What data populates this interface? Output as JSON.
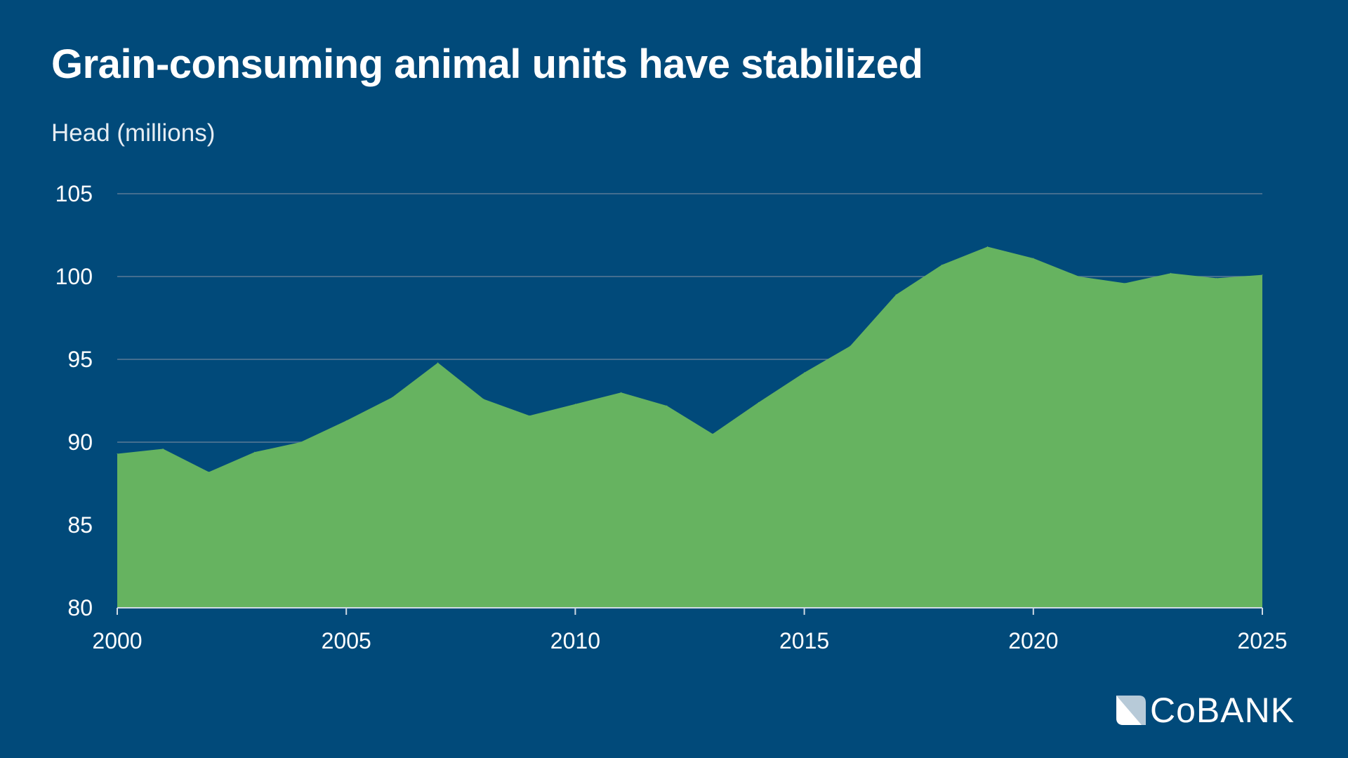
{
  "header": {
    "title": "Grain-consuming animal units have stabilized",
    "subtitle": "Head (millions)"
  },
  "logo": {
    "text": "CoBANK",
    "icon": "cobank-logo-icon"
  },
  "colors": {
    "background": "#014a7a",
    "area": "#66b360",
    "grid": "#5a7a96"
  },
  "chart_data": {
    "type": "area",
    "title": "Grain-consuming animal units have stabilized",
    "ylabel": "Head (millions)",
    "xlabel": "",
    "x": [
      2000,
      2001,
      2002,
      2003,
      2004,
      2005,
      2006,
      2007,
      2008,
      2009,
      2010,
      2011,
      2012,
      2013,
      2014,
      2015,
      2016,
      2017,
      2018,
      2019,
      2020,
      2021,
      2022,
      2023,
      2024,
      2025
    ],
    "values": [
      89.3,
      89.6,
      88.2,
      89.4,
      90.0,
      91.3,
      92.7,
      94.8,
      92.6,
      91.6,
      92.3,
      93.0,
      92.2,
      90.5,
      92.4,
      94.2,
      95.8,
      98.9,
      100.7,
      101.8,
      101.1,
      100.0,
      99.6,
      100.2,
      99.9,
      100.1
    ],
    "xlim": [
      2000,
      2025
    ],
    "ylim": [
      80,
      105
    ],
    "xticks": [
      "2000",
      "2005",
      "2010",
      "2015",
      "2020",
      "2025"
    ],
    "yticks": [
      "80",
      "85",
      "90",
      "95",
      "100",
      "105"
    ],
    "grid": "horizontal",
    "legend": "none"
  }
}
